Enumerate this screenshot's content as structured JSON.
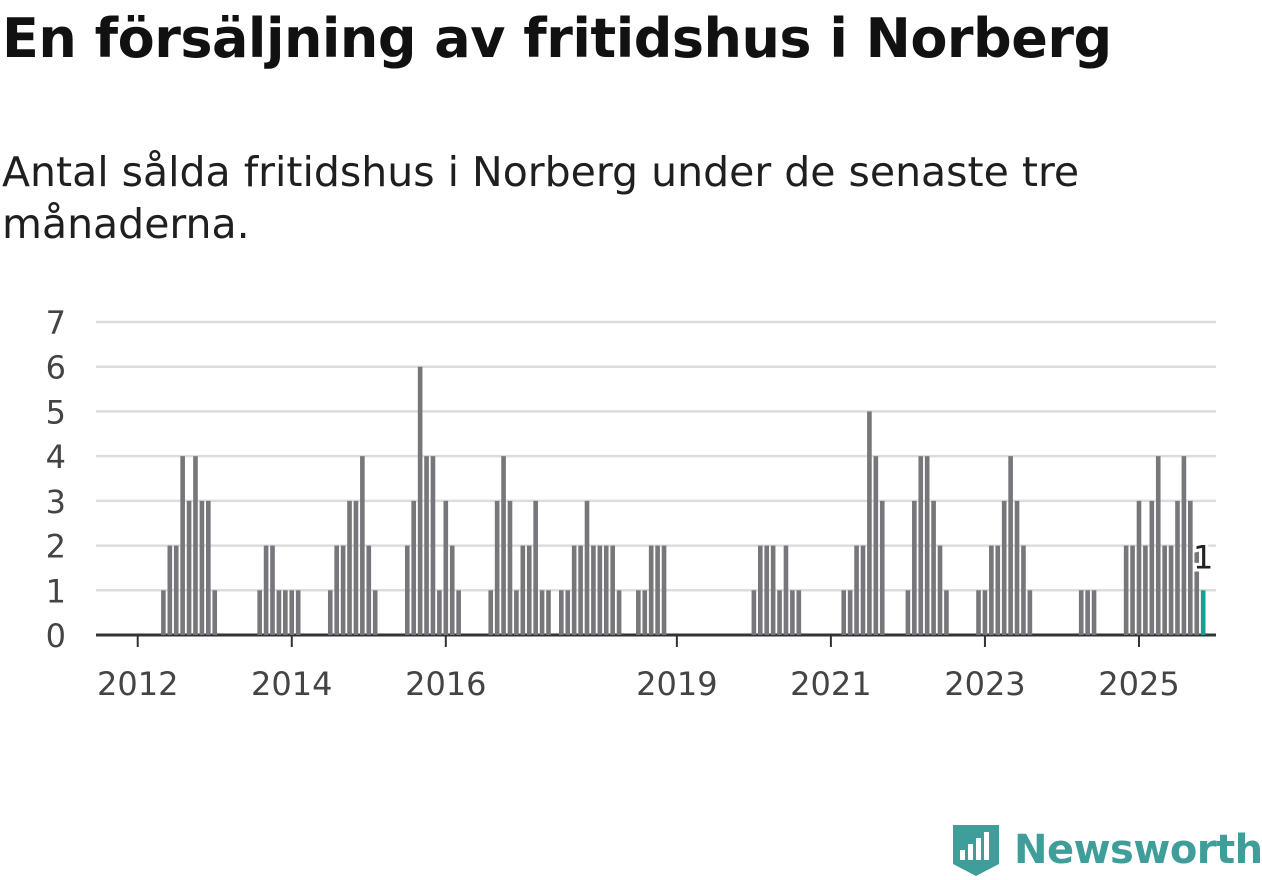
{
  "title": "En försäljning av fritidshus i Norberg",
  "subtitle": "Antal sålda fritidshus i Norberg under de senaste tre månaderna.",
  "brand": {
    "name": "Newsworthy",
    "color": "#3f9e9a",
    "icon": "newsworthy-logo-icon"
  },
  "colors": {
    "bar": "#77777b",
    "highlight": "#1a9e94",
    "grid": "#dddddd",
    "axis": "#333333"
  },
  "chart_data": {
    "type": "bar",
    "x_start": "2011-07",
    "xticks": [
      "2012",
      "2014",
      "2016",
      "2019",
      "2021",
      "2023",
      "2025"
    ],
    "ylim": [
      0,
      7
    ],
    "yticks": [
      0,
      1,
      2,
      3,
      4,
      5,
      6,
      7
    ],
    "values": [
      0,
      0,
      0,
      0,
      0,
      0,
      0,
      0,
      0,
      0,
      1,
      2,
      2,
      4,
      3,
      4,
      3,
      3,
      1,
      0,
      0,
      0,
      0,
      0,
      0,
      1,
      2,
      2,
      1,
      1,
      1,
      1,
      0,
      0,
      0,
      0,
      1,
      2,
      2,
      3,
      3,
      4,
      2,
      1,
      0,
      0,
      0,
      0,
      2,
      3,
      6,
      4,
      4,
      1,
      3,
      2,
      1,
      0,
      0,
      0,
      0,
      1,
      3,
      4,
      3,
      1,
      2,
      2,
      3,
      1,
      1,
      0,
      1,
      1,
      2,
      2,
      3,
      2,
      2,
      2,
      2,
      1,
      0,
      0,
      1,
      1,
      2,
      2,
      2,
      0,
      0,
      0,
      0,
      0,
      0,
      0,
      0,
      0,
      0,
      0,
      0,
      0,
      1,
      2,
      2,
      2,
      1,
      2,
      1,
      1,
      0,
      0,
      0,
      0,
      0,
      0,
      1,
      1,
      2,
      2,
      5,
      4,
      3,
      0,
      0,
      0,
      1,
      3,
      4,
      4,
      3,
      2,
      1,
      0,
      0,
      0,
      0,
      1,
      1,
      2,
      2,
      3,
      4,
      3,
      2,
      1,
      0,
      0,
      0,
      0,
      0,
      0,
      0,
      1,
      1,
      1,
      0,
      0,
      0,
      0,
      2,
      2,
      3,
      2,
      3,
      4,
      2,
      2,
      3,
      4,
      3,
      2,
      1
    ],
    "highlight_last": true,
    "annotation": "1"
  }
}
